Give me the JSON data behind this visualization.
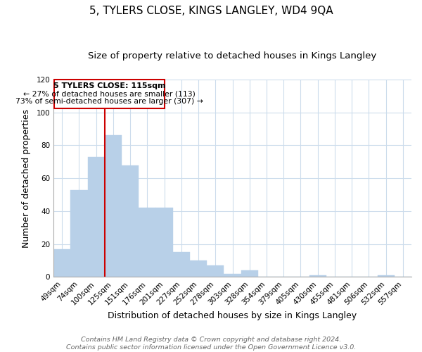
{
  "title": "5, TYLERS CLOSE, KINGS LANGLEY, WD4 9QA",
  "subtitle": "Size of property relative to detached houses in Kings Langley",
  "xlabel": "Distribution of detached houses by size in Kings Langley",
  "ylabel": "Number of detached properties",
  "categories": [
    "49sqm",
    "74sqm",
    "100sqm",
    "125sqm",
    "151sqm",
    "176sqm",
    "201sqm",
    "227sqm",
    "252sqm",
    "278sqm",
    "303sqm",
    "328sqm",
    "354sqm",
    "379sqm",
    "405sqm",
    "430sqm",
    "455sqm",
    "481sqm",
    "506sqm",
    "532sqm",
    "557sqm"
  ],
  "values": [
    17,
    53,
    73,
    86,
    68,
    42,
    42,
    15,
    10,
    7,
    2,
    4,
    0,
    0,
    0,
    1,
    0,
    0,
    0,
    1,
    0
  ],
  "bar_color": "#b8d0e8",
  "bar_edge_color": "#b8d0e8",
  "vline_color": "#cc0000",
  "ylim": [
    0,
    120
  ],
  "yticks": [
    0,
    20,
    40,
    60,
    80,
    100,
    120
  ],
  "annotation_line1": "5 TYLERS CLOSE: 115sqm",
  "annotation_line2": "← 27% of detached houses are smaller (113)",
  "annotation_line3": "73% of semi-detached houses are larger (307) →",
  "footer_line1": "Contains HM Land Registry data © Crown copyright and database right 2024.",
  "footer_line2": "Contains public sector information licensed under the Open Government Licence v3.0.",
  "background_color": "#ffffff",
  "grid_color": "#ccdcec",
  "title_fontsize": 11,
  "subtitle_fontsize": 9.5,
  "axis_label_fontsize": 9,
  "tick_fontsize": 7.5,
  "footer_fontsize": 6.8
}
